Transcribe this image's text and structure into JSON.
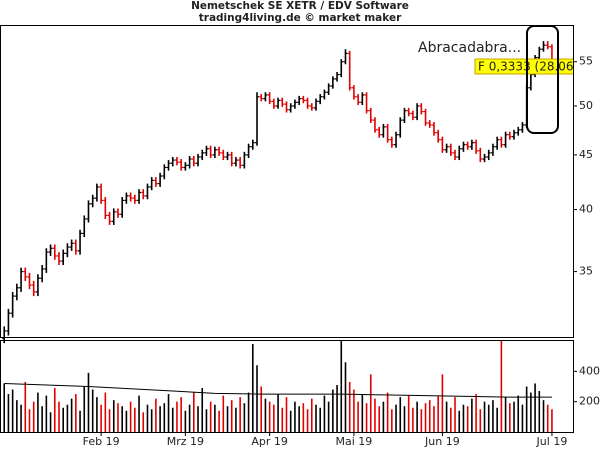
{
  "chart_data": [
    {
      "type": "ohlc",
      "title": "Nemetschek SE XETR / EDV Software",
      "subtitle": "trading4living.de © market maker",
      "annotation": "Abracadabra...",
      "price_label": "F 0,3333 (28.06",
      "log_scale": true,
      "up_color": "#000000",
      "down_color": "#e00000",
      "xlim": [
        -1,
        135
      ],
      "xticks": [
        {
          "value": 23,
          "label": "Feb 19"
        },
        {
          "value": 43,
          "label": "Mrz 19"
        },
        {
          "value": 63,
          "label": "Apr 19"
        },
        {
          "value": 83,
          "label": "Mai 19"
        },
        {
          "value": 104,
          "label": "Jun 19"
        },
        {
          "value": 130,
          "label": "Jul 19"
        }
      ],
      "ylim": [
        30.4,
        59.4
      ],
      "yticks": [
        35,
        40,
        45,
        50,
        55
      ],
      "open": [
        30.3,
        30.8,
        32.0,
        33.2,
        33.8,
        35.0,
        34.6,
        34.0,
        33.5,
        34.5,
        35.2,
        36.5,
        36.8,
        36.2,
        35.8,
        36.4,
        36.9,
        37.2,
        36.6,
        38.0,
        39.2,
        40.5,
        41.0,
        42.0,
        40.8,
        39.5,
        39.0,
        39.8,
        39.6,
        40.8,
        41.2,
        41.0,
        40.8,
        41.5,
        41.2,
        42.0,
        42.6,
        42.3,
        43.0,
        43.8,
        44.2,
        44.5,
        44.3,
        43.8,
        44.0,
        44.6,
        44.2,
        44.8,
        45.2,
        45.6,
        45.0,
        45.5,
        45.2,
        44.8,
        45.0,
        44.2,
        44.5,
        44.0,
        45.0,
        45.8,
        46.2,
        51.0,
        50.8,
        51.2,
        50.5,
        50.0,
        50.6,
        50.2,
        49.6,
        50.0,
        50.4,
        50.8,
        50.6,
        50.0,
        49.8,
        50.5,
        51.0,
        51.5,
        52.2,
        53.0,
        53.5,
        55.0,
        56.0,
        52.0,
        51.0,
        50.4,
        51.2,
        49.5,
        48.5,
        47.5,
        47.0,
        47.8,
        46.5,
        46.0,
        47.0,
        48.5,
        49.5,
        49.2,
        48.8,
        50.0,
        49.4,
        48.2,
        48.0,
        47.2,
        46.5,
        45.5,
        45.8,
        45.2,
        44.8,
        45.6,
        46.0,
        45.8,
        46.2,
        45.4,
        44.6,
        44.8,
        45.2,
        45.8,
        46.5,
        46.0,
        47.0,
        46.8,
        47.2,
        47.5,
        48.0,
        52.0,
        53.5,
        55.5,
        56.5,
        57.0,
        56.8
      ],
      "high": [
        31.1,
        32.3,
        33.5,
        34.1,
        35.3,
        35.3,
        34.9,
        34.3,
        34.8,
        35.5,
        36.8,
        37.1,
        37.1,
        36.5,
        36.7,
        37.2,
        37.5,
        37.5,
        38.3,
        39.5,
        40.8,
        41.3,
        42.3,
        42.3,
        41.1,
        39.8,
        40.1,
        40.1,
        41.1,
        41.5,
        41.5,
        41.3,
        41.8,
        41.8,
        42.3,
        42.9,
        42.9,
        43.3,
        44.1,
        44.5,
        44.8,
        44.8,
        44.6,
        44.3,
        44.9,
        44.9,
        45.1,
        45.5,
        45.9,
        45.9,
        45.8,
        45.8,
        45.5,
        45.3,
        45.3,
        44.8,
        44.8,
        45.3,
        46.1,
        46.5,
        51.5,
        51.3,
        51.5,
        51.5,
        50.8,
        50.9,
        50.9,
        50.5,
        50.3,
        50.7,
        51.1,
        51.1,
        50.9,
        50.3,
        50.8,
        51.3,
        51.8,
        52.5,
        53.3,
        53.8,
        55.3,
        56.5,
        56.3,
        52.3,
        51.3,
        51.5,
        51.5,
        49.8,
        48.8,
        47.8,
        48.1,
        48.1,
        46.8,
        47.3,
        48.8,
        49.8,
        49.8,
        49.5,
        50.3,
        50.3,
        49.7,
        48.5,
        48.3,
        47.5,
        46.8,
        46.1,
        46.1,
        45.5,
        45.9,
        46.3,
        46.3,
        46.5,
        46.5,
        45.7,
        45.1,
        45.5,
        46.1,
        46.8,
        46.8,
        47.3,
        47.3,
        47.5,
        47.8,
        48.3,
        52.3,
        53.8,
        55.8,
        56.8,
        57.5,
        57.5,
        57.1
      ],
      "low": [
        30.0,
        30.5,
        31.7,
        32.9,
        33.5,
        34.3,
        33.7,
        33.2,
        33.2,
        34.2,
        34.9,
        36.2,
        35.9,
        35.5,
        35.5,
        36.1,
        36.6,
        36.3,
        36.3,
        37.7,
        38.9,
        40.2,
        40.7,
        40.5,
        39.2,
        38.7,
        38.7,
        39.3,
        39.3,
        40.5,
        40.7,
        40.5,
        40.5,
        40.9,
        40.9,
        41.7,
        42.0,
        42.0,
        42.7,
        43.5,
        43.9,
        44.0,
        43.5,
        43.5,
        43.7,
        43.9,
        43.9,
        44.5,
        44.9,
        44.7,
        44.7,
        44.9,
        44.5,
        44.5,
        43.9,
        43.9,
        43.7,
        43.7,
        44.7,
        45.5,
        45.9,
        50.5,
        50.5,
        50.2,
        49.7,
        49.7,
        49.9,
        49.3,
        49.3,
        49.7,
        50.1,
        50.3,
        49.7,
        49.5,
        49.5,
        50.2,
        50.7,
        51.2,
        51.9,
        52.7,
        53.2,
        54.7,
        51.7,
        50.7,
        50.1,
        50.1,
        49.2,
        48.2,
        47.2,
        46.7,
        46.7,
        46.2,
        45.7,
        45.7,
        46.7,
        48.2,
        48.9,
        48.5,
        48.5,
        49.1,
        47.9,
        47.7,
        46.9,
        46.2,
        45.2,
        45.2,
        44.9,
        44.5,
        44.5,
        45.3,
        45.5,
        45.5,
        45.1,
        44.3,
        44.3,
        44.5,
        44.9,
        45.5,
        45.7,
        45.7,
        46.5,
        46.5,
        46.9,
        47.2,
        47.7,
        51.7,
        53.2,
        55.2,
        56.2,
        56.5,
        54.9
      ],
      "close": [
        30.8,
        32.0,
        33.2,
        33.8,
        35.0,
        34.6,
        34.0,
        33.5,
        34.5,
        35.2,
        36.5,
        36.8,
        36.2,
        35.8,
        36.4,
        36.9,
        37.2,
        36.6,
        38.0,
        39.2,
        40.5,
        41.0,
        42.0,
        40.8,
        39.5,
        39.0,
        39.8,
        39.6,
        40.8,
        41.2,
        41.0,
        40.8,
        41.5,
        41.2,
        42.0,
        42.6,
        42.3,
        43.0,
        43.8,
        44.2,
        44.5,
        44.3,
        43.8,
        44.0,
        44.6,
        44.2,
        44.8,
        45.2,
        45.6,
        45.0,
        45.5,
        45.2,
        44.8,
        45.0,
        44.2,
        44.5,
        44.0,
        45.0,
        45.8,
        46.2,
        51.0,
        50.8,
        51.2,
        50.5,
        50.0,
        50.6,
        50.2,
        49.6,
        50.0,
        50.4,
        50.8,
        50.6,
        50.0,
        49.8,
        50.5,
        51.0,
        51.5,
        52.2,
        53.0,
        53.5,
        55.0,
        56.0,
        52.0,
        51.0,
        50.4,
        51.2,
        49.5,
        48.5,
        47.5,
        47.0,
        47.8,
        46.5,
        46.0,
        47.0,
        48.5,
        49.5,
        49.2,
        48.8,
        50.0,
        49.4,
        48.2,
        48.0,
        47.2,
        46.5,
        45.5,
        45.8,
        45.2,
        44.8,
        45.6,
        46.0,
        45.8,
        46.2,
        45.4,
        44.6,
        44.8,
        45.2,
        45.8,
        46.5,
        46.0,
        47.0,
        46.8,
        47.2,
        47.5,
        48.0,
        52.0,
        53.5,
        55.5,
        56.5,
        57.0,
        56.8,
        55.2
      ]
    },
    {
      "type": "volume",
      "xlim": [
        -1,
        135
      ],
      "ylim": [
        0,
        600
      ],
      "yticks": [
        200,
        400
      ],
      "values": [
        320,
        250,
        280,
        210,
        180,
        330,
        150,
        200,
        260,
        170,
        240,
        130,
        290,
        200,
        160,
        180,
        220,
        250,
        140,
        300,
        390,
        280,
        230,
        180,
        260,
        150,
        210,
        190,
        170,
        140,
        200,
        160,
        240,
        130,
        180,
        150,
        220,
        170,
        190,
        250,
        160,
        200,
        230,
        140,
        180,
        260,
        170,
        290,
        150,
        200,
        180,
        140,
        240,
        170,
        210,
        160,
        230,
        190,
        260,
        580,
        440,
        300,
        220,
        200,
        180,
        250,
        160,
        230,
        140,
        200,
        170,
        190,
        150,
        220,
        180,
        160,
        240,
        200,
        280,
        310,
        600,
        460,
        330,
        280,
        200,
        250,
        190,
        380,
        220,
        170,
        200,
        260,
        150,
        180,
        230,
        170,
        240,
        160,
        200,
        150,
        190,
        210,
        170,
        240,
        380,
        200,
        160,
        230,
        140,
        180,
        170,
        220,
        250,
        150,
        200,
        180,
        210,
        160,
        600,
        230,
        190,
        200,
        240,
        180,
        300,
        260,
        320,
        270,
        210,
        180,
        150
      ],
      "average": {
        "color": "#000000",
        "x": [
          0,
          10,
          20,
          30,
          40,
          50,
          60,
          70,
          80,
          90,
          100,
          110,
          120,
          130
        ],
        "values": [
          320,
          310,
          300,
          285,
          270,
          255,
          250,
          250,
          250,
          245,
          240,
          235,
          230,
          230
        ]
      }
    }
  ]
}
